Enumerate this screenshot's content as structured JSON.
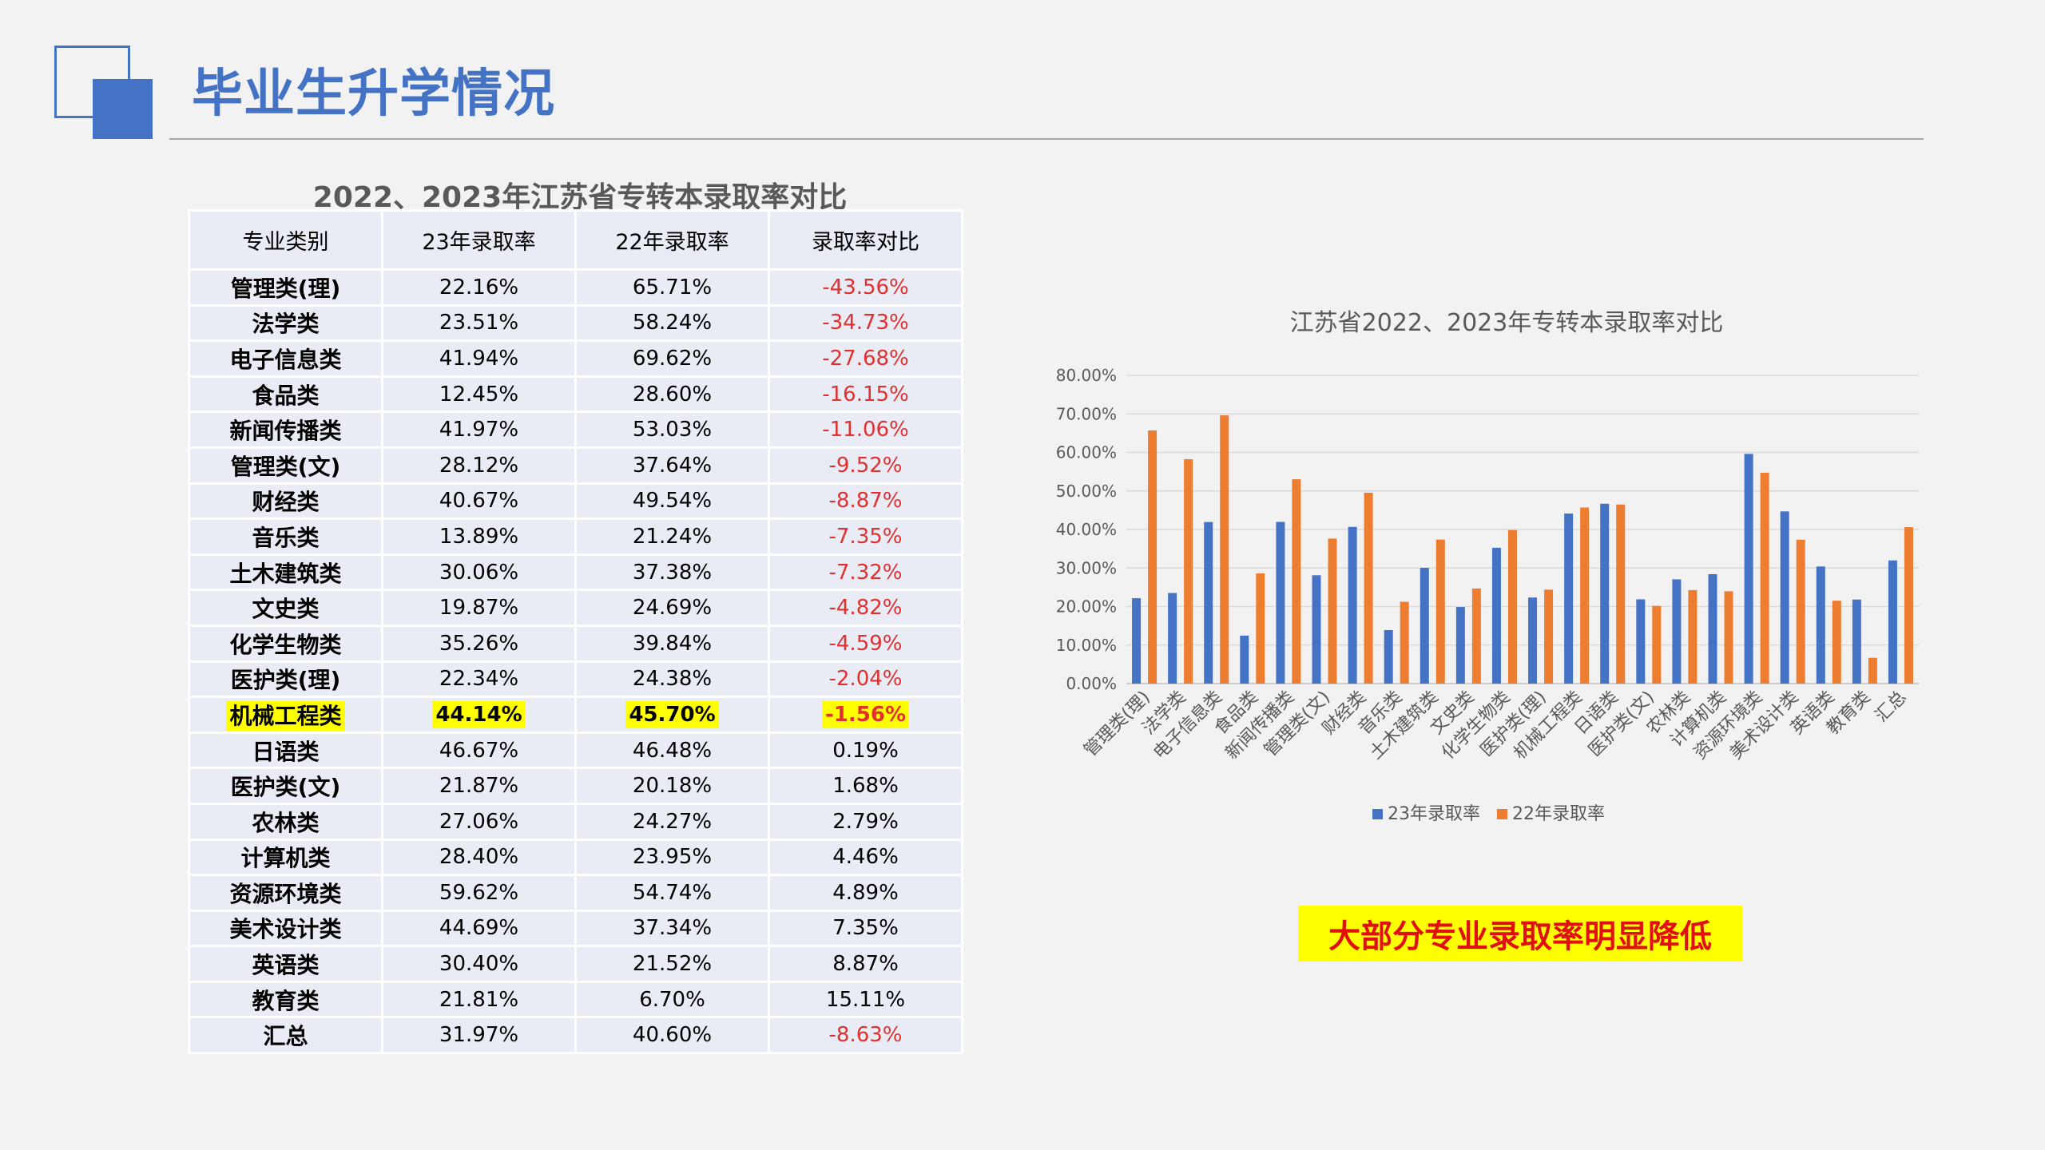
{
  "page": {
    "title": "毕业生升学情况"
  },
  "table": {
    "title": "2022、2023年江苏省专转本录取率对比",
    "headers": [
      "专业类别",
      "23年录取率",
      "22年录取率",
      "录取率对比"
    ],
    "rows": [
      [
        "管理类(理)",
        "22.16%",
        "65.71%",
        "-43.56%"
      ],
      [
        "法学类",
        "23.51%",
        "58.24%",
        "-34.73%"
      ],
      [
        "电子信息类",
        "41.94%",
        "69.62%",
        "-27.68%"
      ],
      [
        "食品类",
        "12.45%",
        "28.60%",
        "-16.15%"
      ],
      [
        "新闻传播类",
        "41.97%",
        "53.03%",
        "-11.06%"
      ],
      [
        "管理类(文)",
        "28.12%",
        "37.64%",
        "-9.52%"
      ],
      [
        "财经类",
        "40.67%",
        "49.54%",
        "-8.87%"
      ],
      [
        "音乐类",
        "13.89%",
        "21.24%",
        "-7.35%"
      ],
      [
        "土木建筑类",
        "30.06%",
        "37.38%",
        "-7.32%"
      ],
      [
        "文史类",
        "19.87%",
        "24.69%",
        "-4.82%"
      ],
      [
        "化学生物类",
        "35.26%",
        "39.84%",
        "-4.59%"
      ],
      [
        "医护类(理)",
        "22.34%",
        "24.38%",
        "-2.04%"
      ],
      [
        "机械工程类",
        "44.14%",
        "45.70%",
        "-1.56%"
      ],
      [
        "日语类",
        "46.67%",
        "46.48%",
        "0.19%"
      ],
      [
        "医护类(文)",
        "21.87%",
        "20.18%",
        "1.68%"
      ],
      [
        "农林类",
        "27.06%",
        "24.27%",
        "2.79%"
      ],
      [
        "计算机类",
        "28.40%",
        "23.95%",
        "4.46%"
      ],
      [
        "资源环境类",
        "59.62%",
        "54.74%",
        "4.89%"
      ],
      [
        "美术设计类",
        "44.69%",
        "37.34%",
        "7.35%"
      ],
      [
        "英语类",
        "30.40%",
        "21.52%",
        "8.87%"
      ],
      [
        "教育类",
        "21.81%",
        "6.70%",
        "15.11%"
      ],
      [
        "汇总",
        "31.97%",
        "40.60%",
        "-8.63%"
      ]
    ],
    "highlight_row": 12,
    "colors": {
      "negative": "#e03030",
      "highlight": "#ffff00",
      "cell_bg": "#e9ebf5"
    }
  },
  "callout": {
    "text": "大部分专业录取率明显降低"
  },
  "chart_data": {
    "type": "bar",
    "title": "江苏省2022、2023年专转本录取率对比",
    "categories": [
      "管理类(理)",
      "法学类",
      "电子信息类",
      "食品类",
      "新闻传播类",
      "管理类(文)",
      "财经类",
      "音乐类",
      "土木建筑类",
      "文史类",
      "化学生物类",
      "医护类(理)",
      "机械工程类",
      "日语类",
      "医护类(文)",
      "农林类",
      "计算机类",
      "资源环境类",
      "美术设计类",
      "英语类",
      "教育类",
      "汇总"
    ],
    "series": [
      {
        "name": "23年录取率",
        "color": "#4472c4",
        "values": [
          22.16,
          23.51,
          41.94,
          12.45,
          41.97,
          28.12,
          40.67,
          13.89,
          30.06,
          19.87,
          35.26,
          22.34,
          44.14,
          46.67,
          21.87,
          27.06,
          28.4,
          59.62,
          44.69,
          30.4,
          21.81,
          31.97
        ]
      },
      {
        "name": "22年录取率",
        "color": "#ed7d31",
        "values": [
          65.71,
          58.24,
          69.62,
          28.6,
          53.03,
          37.64,
          49.54,
          21.24,
          37.38,
          24.69,
          39.84,
          24.38,
          45.7,
          46.48,
          20.18,
          24.27,
          23.95,
          54.74,
          37.34,
          21.52,
          6.7,
          40.6
        ]
      }
    ],
    "ylim": [
      0,
      80
    ],
    "yticks": [
      "0.00%",
      "10.00%",
      "20.00%",
      "30.00%",
      "40.00%",
      "50.00%",
      "60.00%",
      "70.00%",
      "80.00%"
    ],
    "grid": true,
    "legend": "bottom"
  }
}
